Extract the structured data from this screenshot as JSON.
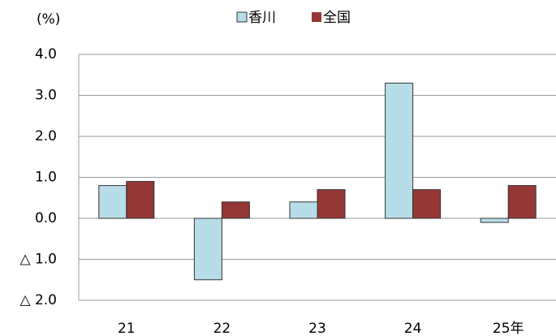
{
  "chart_data": {
    "type": "bar",
    "unit": "(%)",
    "categories": [
      "21",
      "22",
      "23",
      "24",
      "25年"
    ],
    "series": [
      {
        "name": "香川",
        "color": "#b7dde8",
        "values": [
          0.8,
          -1.5,
          0.4,
          3.3,
          -0.1
        ]
      },
      {
        "name": "全国",
        "color": "#953735",
        "values": [
          0.9,
          0.4,
          0.7,
          0.7,
          0.8
        ]
      }
    ],
    "ylim": [
      -2,
      4
    ],
    "yticks": [
      {
        "value": 4,
        "label": "4.0"
      },
      {
        "value": 3,
        "label": "3.0"
      },
      {
        "value": 2,
        "label": "2.0"
      },
      {
        "value": 1,
        "label": "1.0"
      },
      {
        "value": 0,
        "label": "0.0"
      },
      {
        "value": -1,
        "label": "△ 1.0"
      },
      {
        "value": -2,
        "label": "△ 2.0"
      }
    ],
    "grid": true
  }
}
